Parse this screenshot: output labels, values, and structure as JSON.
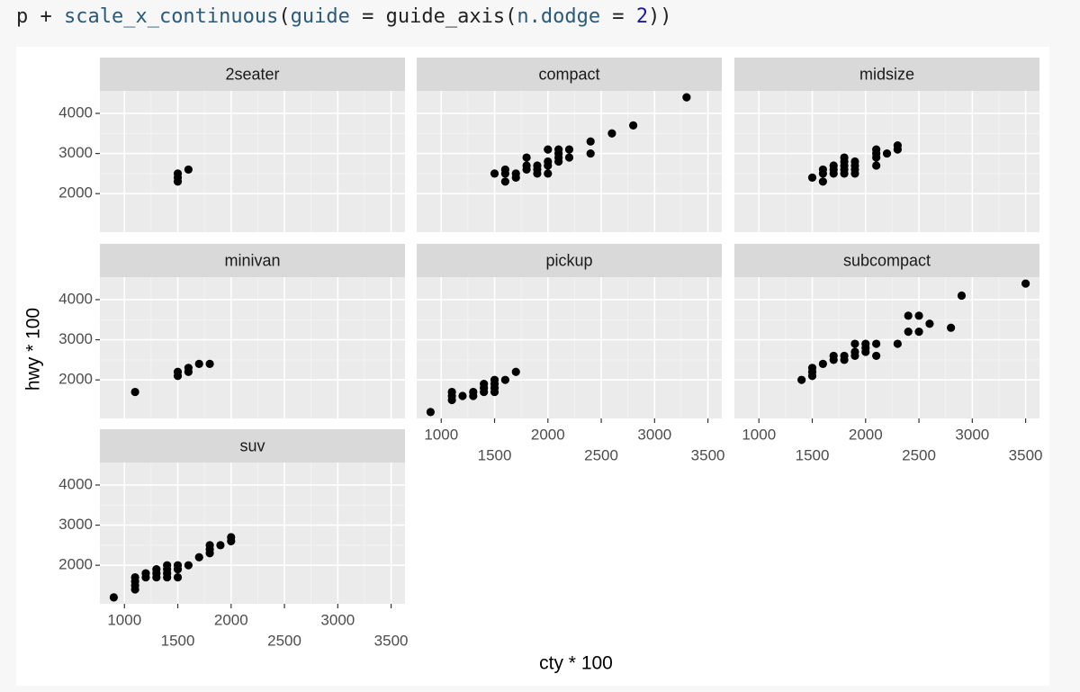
{
  "code": [
    "p + ",
    "scale_x_continuous",
    "(",
    "guide",
    " = ",
    "guide_axis",
    "(",
    "n.dodge",
    " = ",
    "2",
    "))"
  ],
  "chart_data": {
    "type": "scatter",
    "x_label": "cty * 100",
    "y_label": "hwy * 100",
    "color": "#000000",
    "grid": true,
    "xlim": [
      770,
      3630
    ],
    "ylim": [
      1040,
      4560
    ],
    "xticks": [
      1000,
      1500,
      2000,
      2500,
      3000,
      3500
    ],
    "yticks": [
      2000,
      3000,
      4000
    ],
    "panels": [
      {
        "title": "2seater",
        "x": [
          1500,
          1500,
          1500,
          1600
        ],
        "y": [
          2500,
          2400,
          2300,
          2600
        ]
      },
      {
        "title": "compact",
        "x": [
          1500,
          1600,
          1600,
          1600,
          1700,
          1700,
          1800,
          1800,
          1800,
          1900,
          1900,
          1900,
          2000,
          2000,
          2000,
          2000,
          2100,
          2100,
          2100,
          2100,
          2200,
          2200,
          2400,
          2400,
          2600,
          2800,
          3300
        ],
        "y": [
          2500,
          2600,
          2500,
          2300,
          2500,
          2400,
          2900,
          2700,
          2600,
          2700,
          2600,
          2500,
          3100,
          2800,
          2700,
          2500,
          3100,
          3000,
          2900,
          2800,
          3100,
          2900,
          3300,
          3000,
          3500,
          3700,
          4400
        ]
      },
      {
        "title": "midsize",
        "x": [
          1500,
          1600,
          1600,
          1600,
          1700,
          1700,
          1700,
          1800,
          1800,
          1800,
          1800,
          1800,
          1900,
          1900,
          1900,
          1900,
          2100,
          2100,
          2100,
          2100,
          2200,
          2300,
          2300
        ],
        "y": [
          2400,
          2600,
          2500,
          2300,
          2700,
          2600,
          2500,
          2900,
          2800,
          2700,
          2600,
          2500,
          2800,
          2700,
          2600,
          2500,
          3100,
          3000,
          2900,
          2700,
          3000,
          3200,
          3100
        ]
      },
      {
        "title": "minivan",
        "x": [
          1100,
          1500,
          1500,
          1600,
          1600,
          1700,
          1800
        ],
        "y": [
          1700,
          2200,
          2100,
          2300,
          2200,
          2400,
          2400
        ]
      },
      {
        "title": "pickup",
        "x": [
          900,
          1100,
          1100,
          1100,
          1200,
          1300,
          1300,
          1400,
          1400,
          1400,
          1500,
          1500,
          1500,
          1500,
          1600,
          1700
        ],
        "y": [
          1200,
          1700,
          1600,
          1500,
          1600,
          1700,
          1600,
          1900,
          1800,
          1700,
          2000,
          1900,
          1800,
          1700,
          2000,
          2200
        ]
      },
      {
        "title": "subcompact",
        "x": [
          1400,
          1500,
          1500,
          1500,
          1600,
          1700,
          1700,
          1800,
          1800,
          1900,
          1900,
          1900,
          2000,
          2000,
          2000,
          2100,
          2100,
          2300,
          2400,
          2400,
          2500,
          2500,
          2600,
          2800,
          2900,
          3500
        ],
        "y": [
          2000,
          2300,
          2200,
          2100,
          2400,
          2600,
          2500,
          2600,
          2500,
          2900,
          2700,
          2600,
          2900,
          2800,
          2700,
          2900,
          2600,
          2900,
          3600,
          3200,
          3600,
          3200,
          3400,
          3300,
          4100,
          4400
        ]
      },
      {
        "title": "suv",
        "x": [
          900,
          1100,
          1100,
          1100,
          1100,
          1200,
          1200,
          1300,
          1300,
          1300,
          1400,
          1400,
          1400,
          1400,
          1500,
          1500,
          1500,
          1600,
          1700,
          1800,
          1800,
          1800,
          1900,
          2000,
          2000
        ],
        "y": [
          1200,
          1700,
          1600,
          1500,
          1400,
          1800,
          1700,
          1900,
          1800,
          1700,
          2000,
          1900,
          1800,
          1700,
          2000,
          1900,
          1700,
          2000,
          2200,
          2500,
          2400,
          2300,
          2500,
          2700,
          2600
        ]
      }
    ]
  }
}
